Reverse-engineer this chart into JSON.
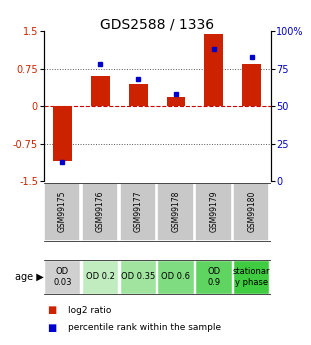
{
  "title": "GDS2588 / 1336",
  "samples": [
    "GSM99175",
    "GSM99176",
    "GSM99177",
    "GSM99178",
    "GSM99179",
    "GSM99180"
  ],
  "log2_ratio": [
    -1.1,
    0.6,
    0.45,
    0.18,
    1.45,
    0.85
  ],
  "percentile_rank": [
    13,
    78,
    68,
    58,
    88,
    83
  ],
  "age_labels": [
    "OD\n0.03",
    "OD 0.2",
    "OD 0.35",
    "OD 0.6",
    "OD\n0.9",
    "stationar\ny phase"
  ],
  "age_bg_colors": [
    "#d0d0d0",
    "#c0ecc0",
    "#a0e4a0",
    "#80dc80",
    "#60d460",
    "#40cc40"
  ],
  "sample_bg_color": "#c8c8c8",
  "ylim_left": [
    -1.5,
    1.5
  ],
  "ylim_right": [
    0,
    100
  ],
  "left_yticks": [
    -1.5,
    -0.75,
    0,
    0.75,
    1.5
  ],
  "left_yticklabels": [
    "-1.5",
    "-0.75",
    "0",
    "0.75",
    "1.5"
  ],
  "right_ticks": [
    0,
    25,
    50,
    75,
    100
  ],
  "right_tick_labels": [
    "0",
    "25",
    "50",
    "75",
    "100%"
  ],
  "hlines": [
    -0.75,
    0.0,
    0.75
  ],
  "bar_color": "#cc2200",
  "dot_color": "#0000cc",
  "bar_width": 0.5,
  "title_fontsize": 10,
  "tick_fontsize": 7,
  "sample_fontsize": 5.5,
  "age_fontsize": 6,
  "legend_fontsize": 6.5
}
